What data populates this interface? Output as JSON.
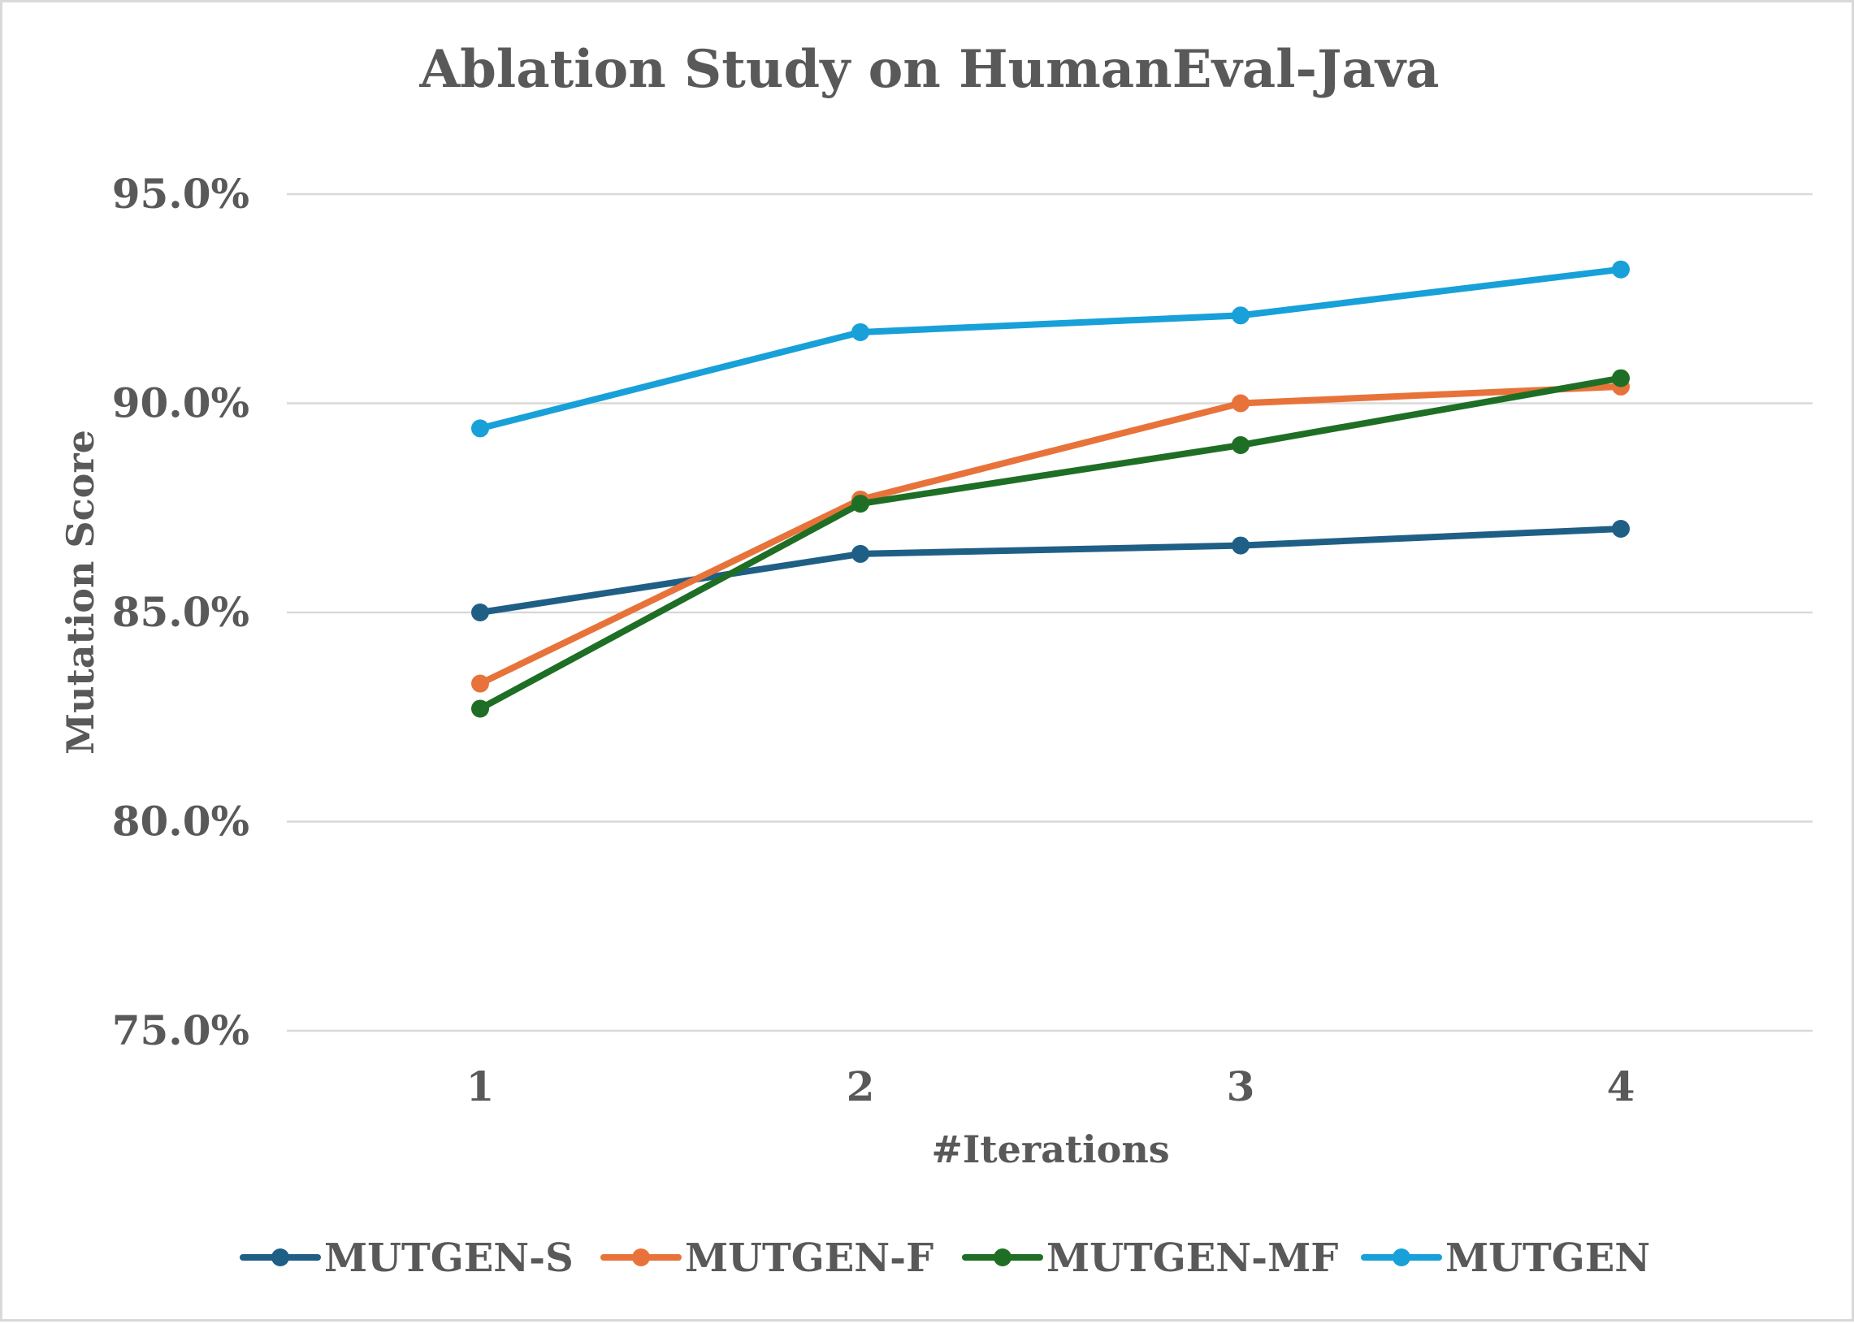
{
  "chart_data": {
    "type": "line",
    "title": "Ablation Study on HumanEval-Java",
    "xlabel": "#Iterations",
    "ylabel": "Mutation Score",
    "categories": [
      "1",
      "2",
      "3",
      "4"
    ],
    "ylim": [
      75.0,
      95.0
    ],
    "yticks": [
      75.0,
      80.0,
      85.0,
      90.0,
      95.0
    ],
    "ytick_labels": [
      "75.0%",
      "80.0%",
      "85.0%",
      "90.0%",
      "95.0%"
    ],
    "grid": true,
    "legend_position": "bottom",
    "series": [
      {
        "name": "MUTGEN-S",
        "color": "#1f5f86",
        "values": [
          85.0,
          86.4,
          86.6,
          87.0
        ]
      },
      {
        "name": "MUTGEN-F",
        "color": "#e8733a",
        "values": [
          83.3,
          87.7,
          90.0,
          90.4
        ]
      },
      {
        "name": "MUTGEN-MF",
        "color": "#1e6f25",
        "values": [
          82.7,
          87.6,
          89.0,
          90.6
        ]
      },
      {
        "name": "MUTGEN",
        "color": "#18a0d8",
        "values": [
          89.4,
          91.7,
          92.1,
          93.2
        ]
      }
    ]
  }
}
